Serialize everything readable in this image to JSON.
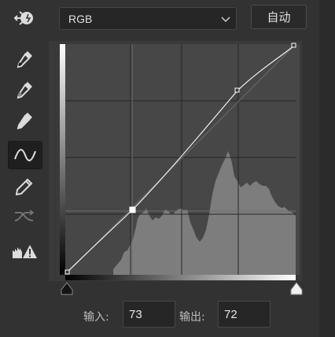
{
  "toolbar": {
    "tools": [
      {
        "name": "adjust-on-image-icon"
      },
      {
        "name": "black-point-eyedropper-icon"
      },
      {
        "name": "gray-point-eyedropper-icon"
      },
      {
        "name": "white-point-eyedropper-icon"
      },
      {
        "name": "curve-edit-points-icon",
        "active": true
      },
      {
        "name": "pencil-draw-icon"
      },
      {
        "name": "smooth-curve-icon"
      },
      {
        "name": "clipping-warning-icon"
      }
    ]
  },
  "channel": {
    "selected": "RGB"
  },
  "auto_label": "自动",
  "input": {
    "label": "输入:",
    "value": "73"
  },
  "output": {
    "label": "输出:",
    "value": "72"
  },
  "colors": {
    "background": "#323232",
    "graph_bg": "#444444",
    "histogram": "#808080",
    "curve": "#ffffff"
  }
}
